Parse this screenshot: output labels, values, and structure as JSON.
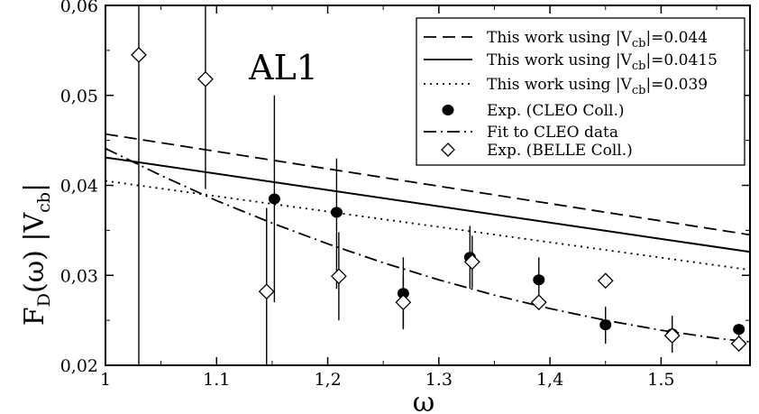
{
  "chart_data": {
    "type": "line",
    "panel_label": "AL1",
    "xlabel": "ω",
    "ylabel": {
      "main": "F",
      "sub1": "D",
      "mid": "(ω) |V",
      "sub2": "cb",
      "end": "|"
    },
    "xlim": [
      1.0,
      1.58
    ],
    "ylim": [
      0.02,
      0.06
    ],
    "x_ticks": [
      {
        "value": 1.0,
        "label": "1"
      },
      {
        "value": 1.1,
        "label": "1.1"
      },
      {
        "value": 1.2,
        "label": "1,2"
      },
      {
        "value": 1.3,
        "label": "1.3"
      },
      {
        "value": 1.4,
        "label": "1,4"
      },
      {
        "value": 1.5,
        "label": "1.5"
      }
    ],
    "y_ticks": [
      {
        "value": 0.02,
        "label": "0,02"
      },
      {
        "value": 0.03,
        "label": "0,03"
      },
      {
        "value": 0.04,
        "label": "0,04"
      },
      {
        "value": 0.05,
        "label": "0,05"
      },
      {
        "value": 0.06,
        "label": "0,06"
      }
    ],
    "grid": false,
    "legend_position": "top-right",
    "series": [
      {
        "name": "This work using |Vcb|=0.044",
        "legend_pre": "This work using |V",
        "legend_sub": "cb",
        "legend_post": "|=0.044",
        "style": "dashed",
        "x": [
          1.0,
          1.58
        ],
        "y": [
          0.0457,
          0.0345
        ]
      },
      {
        "name": "This work using |Vcb|=0.0415",
        "legend_pre": "This work using |V",
        "legend_sub": "cb",
        "legend_post": "|=0.0415",
        "style": "solid",
        "x": [
          1.0,
          1.58
        ],
        "y": [
          0.0431,
          0.0326
        ]
      },
      {
        "name": "This work using |Vcb|=0.039",
        "legend_pre": "This work using |V",
        "legend_sub": "cb",
        "legend_post": "|=0.039",
        "style": "dotted",
        "x": [
          1.0,
          1.58
        ],
        "y": [
          0.0405,
          0.0306
        ]
      },
      {
        "name": "Fit to CLEO data",
        "legend_pre": "Fit to CLEO data",
        "style": "dashdot",
        "x": [
          1.0,
          1.05,
          1.1,
          1.15,
          1.2,
          1.25,
          1.3,
          1.35,
          1.4,
          1.45,
          1.5,
          1.55,
          1.58
        ],
        "y": [
          0.0441,
          0.0411,
          0.0383,
          0.0358,
          0.0335,
          0.0314,
          0.0295,
          0.0278,
          0.0263,
          0.025,
          0.0239,
          0.023,
          0.0226
        ]
      }
    ],
    "points": [
      {
        "name": "Exp. (CLEO Coll.)",
        "marker": "filled-circle",
        "x": [
          1.152,
          1.208,
          1.268,
          1.328,
          1.39,
          1.45,
          1.51,
          1.57
        ],
        "y": [
          0.0385,
          0.037,
          0.028,
          0.032,
          0.0295,
          0.0245,
          0.0235,
          0.024
        ],
        "err_low": [
          0.0115,
          0.0085,
          0.004,
          0.0035,
          0.0025,
          0.0021,
          0.0021,
          0.0021
        ],
        "err_high": [
          0.0115,
          0.006,
          0.004,
          0.0035,
          0.0025,
          0.002,
          0.002,
          0.0
        ],
        "legend_pre": "Exp. (CLEO Coll.)"
      },
      {
        "name": "Exp. (BELLE Coll.)",
        "marker": "open-diamond",
        "x": [
          1.03,
          1.09,
          1.145,
          1.21,
          1.268,
          1.33,
          1.39,
          1.45,
          1.51,
          1.57
        ],
        "y": [
          0.0545,
          0.0518,
          0.0282,
          0.0299,
          0.027,
          0.0315,
          0.027,
          0.0294,
          0.0233,
          0.0224
        ],
        "err_low": [
          0.035,
          0.0122,
          0.0082,
          0.0049,
          0.0029,
          0.0029,
          0.0,
          0.0,
          0.0,
          0.0
        ],
        "err_high": [
          0.0055,
          0.0082,
          0.0093,
          0.0049,
          0.0029,
          0.0029,
          0.0,
          0.0,
          0.0,
          0.0
        ],
        "legend_pre": "Exp. (BELLE Coll.)"
      }
    ]
  }
}
